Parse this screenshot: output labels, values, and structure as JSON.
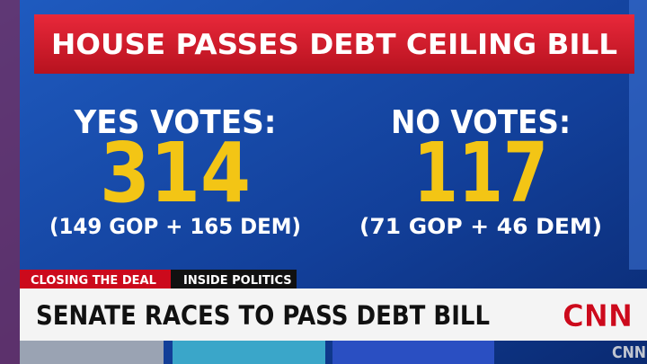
{
  "header": {
    "title": "HOUSE PASSES DEBT CEILING BILL"
  },
  "votes": [
    {
      "label": "YES VOTES:",
      "count": "314",
      "breakdown": "(149 GOP + 165 DEM)"
    },
    {
      "label": "NO VOTES:",
      "count": "117",
      "breakdown": "(71 GOP + 46 DEM)"
    }
  ],
  "lower_third": {
    "tags": [
      "CLOSING THE DEAL",
      "INSIDE POLITICS"
    ],
    "headline": "SENATE RACES TO PASS DEBT BILL",
    "logo": "CNN"
  },
  "watermark": "CNN"
}
